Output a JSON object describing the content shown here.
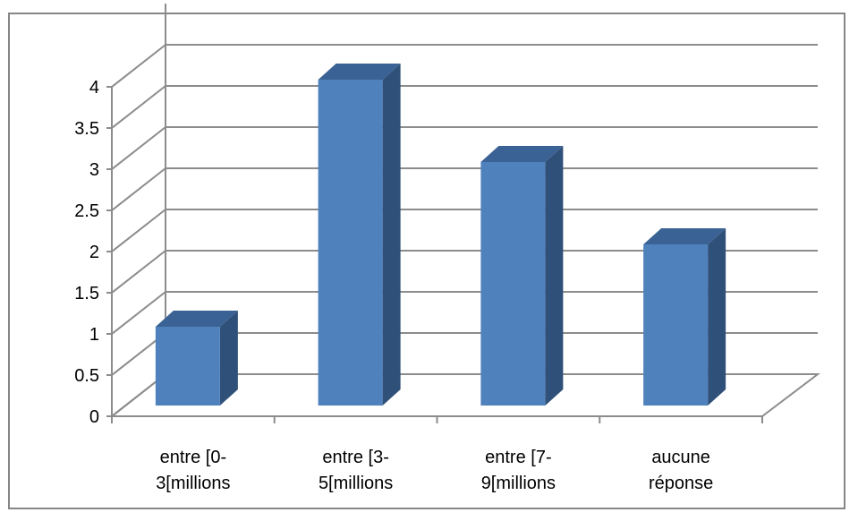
{
  "chart_data": {
    "type": "bar",
    "title": "",
    "xlabel": "",
    "ylabel": "",
    "categories": [
      [
        "entre [0-",
        "3[millions"
      ],
      [
        "entre [3-",
        "5[millions"
      ],
      [
        "entre [7-",
        "9[millions"
      ],
      [
        "aucune",
        "réponse"
      ]
    ],
    "values": [
      1,
      4,
      3,
      2
    ],
    "ylim": [
      0,
      4
    ],
    "yticks": [
      "0",
      "0.5",
      "1",
      "1.5",
      "2",
      "2.5",
      "3",
      "3.5",
      "4"
    ],
    "grid": true,
    "legend": "none",
    "style": "3d-column",
    "colors": {
      "bar_front": "#4F81BD",
      "bar_side": "#2F5079",
      "bar_top": "#3B6294",
      "grid": "#8C8C8C",
      "frame": "#868686"
    }
  }
}
